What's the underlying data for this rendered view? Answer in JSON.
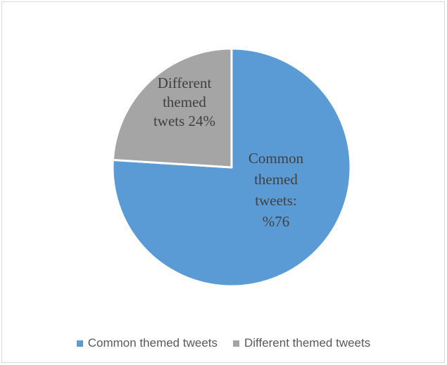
{
  "chart_data": {
    "type": "pie",
    "title": "",
    "categories": [
      "Common themed tweets",
      "Different themed tweets"
    ],
    "values": [
      76,
      24
    ],
    "colors": [
      "#5b9bd5",
      "#a5a5a5"
    ],
    "data_labels": [
      [
        "Common",
        "themed",
        "tweets:",
        "%76"
      ],
      [
        "Different",
        "themed",
        "twets 24%"
      ]
    ],
    "legend_position": "bottom"
  }
}
